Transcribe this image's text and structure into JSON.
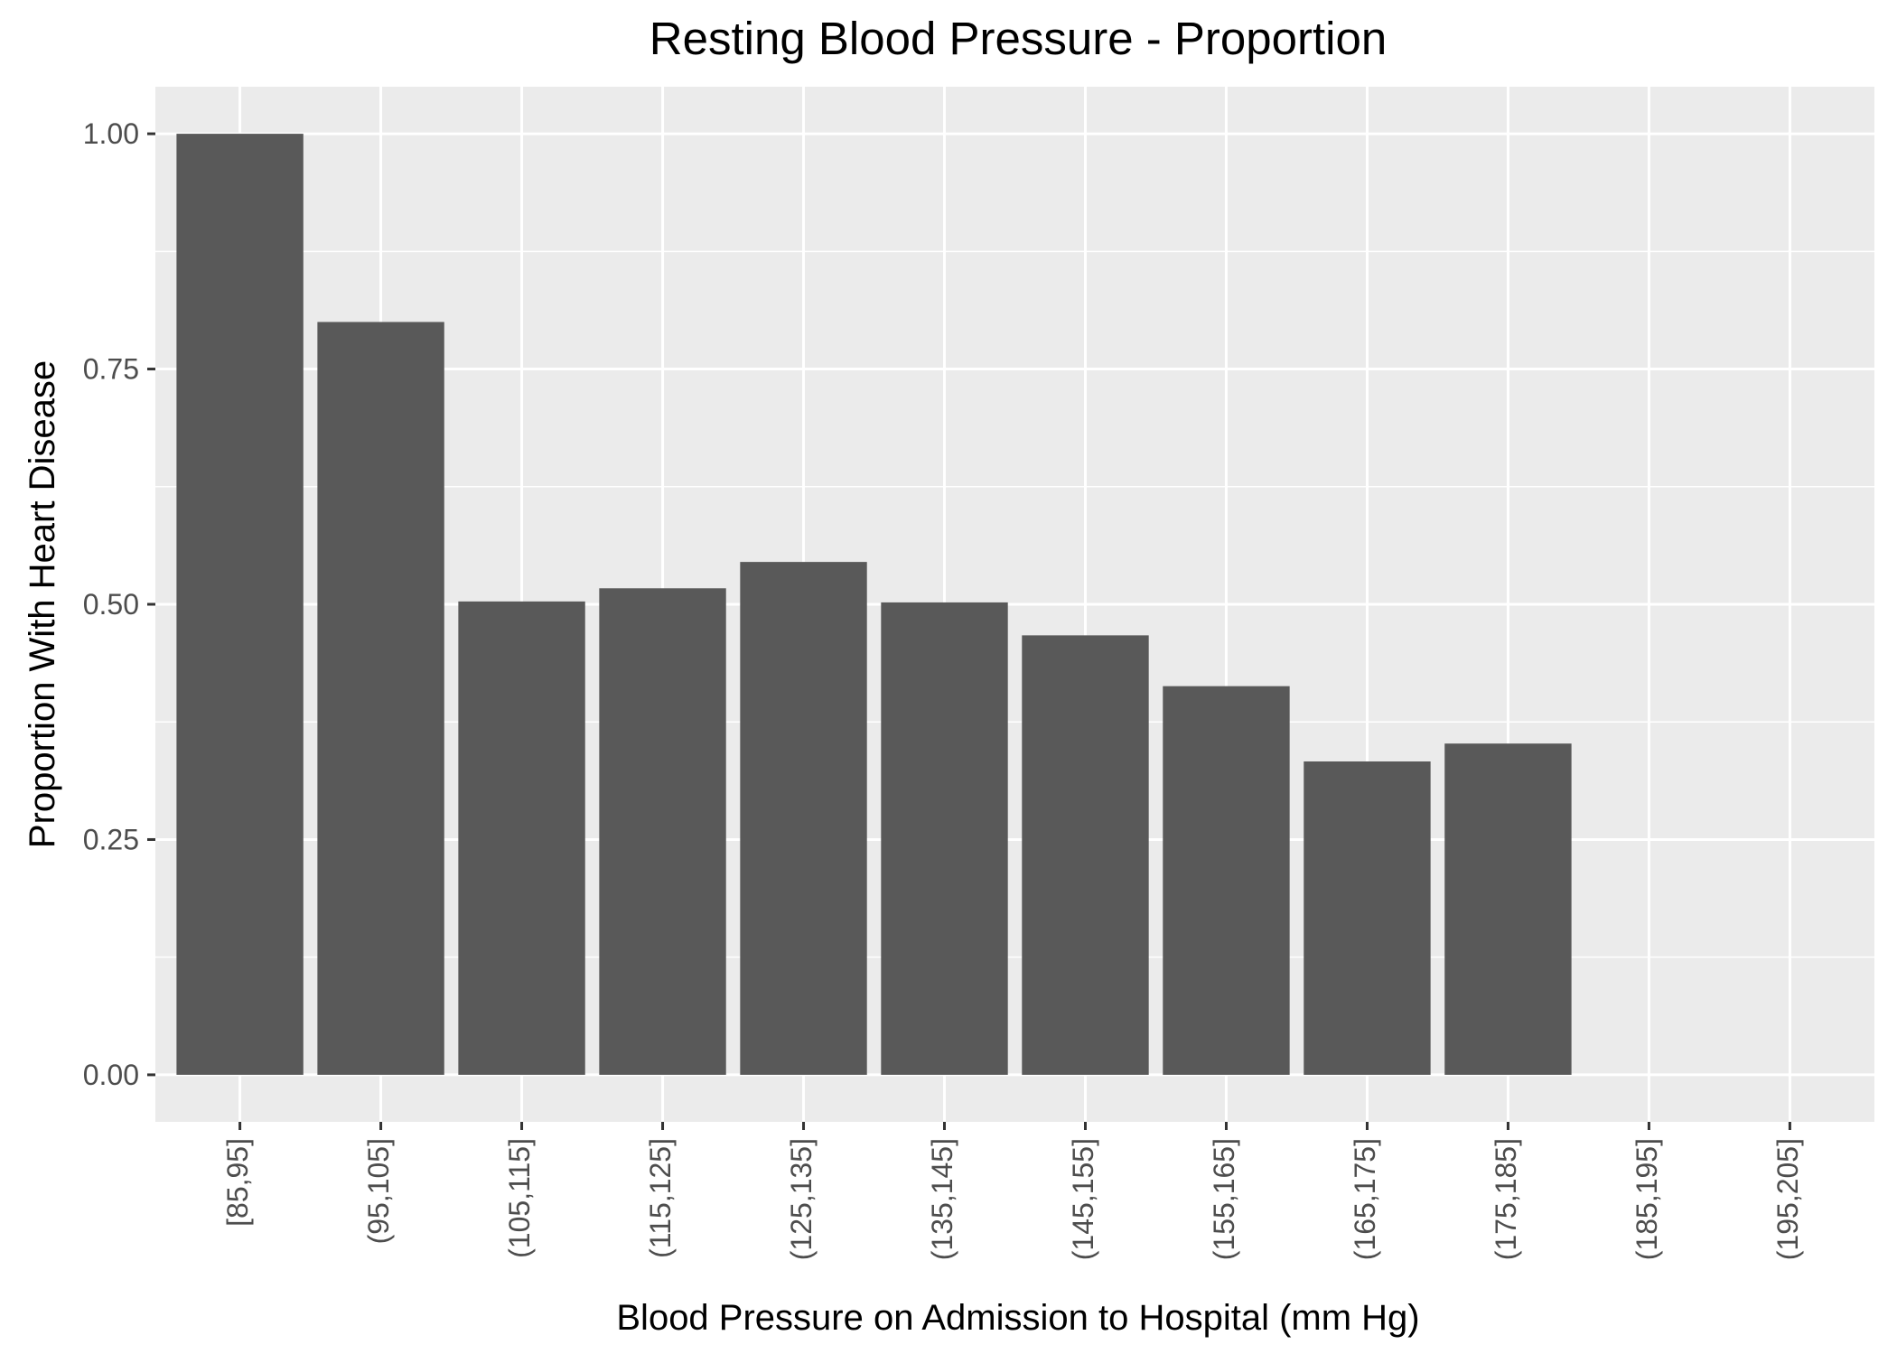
{
  "chart_data": {
    "type": "bar",
    "title": "Resting Blood Pressure - Proportion",
    "xlabel": "Blood Pressure on Admission to Hospital (mm Hg)",
    "ylabel": "Proportion With Heart Disease",
    "categories": [
      "[85,95]",
      "(95,105]",
      "(105,115]",
      "(115,125]",
      "(125,135]",
      "(135,145]",
      "(145,155]",
      "(155,165]",
      "(165,175]",
      "(175,185]",
      "(185,195]",
      "(195,205]"
    ],
    "values": [
      1.0,
      0.8,
      0.503,
      0.517,
      0.545,
      0.502,
      0.467,
      0.413,
      0.333,
      0.352,
      null,
      null
    ],
    "yticks": [
      "0.00",
      "0.25",
      "0.50",
      "0.75",
      "1.00"
    ],
    "ytick_values": [
      0,
      0.25,
      0.5,
      0.75,
      1.0
    ],
    "ylim": [
      -0.05,
      1.05
    ],
    "grid": true,
    "legend": "none",
    "colors": {
      "bar": "#595959",
      "panel": "#ebebeb",
      "grid": "#ffffff",
      "tick_text": "#4d4d4d",
      "tick_mark": "#333333"
    }
  }
}
